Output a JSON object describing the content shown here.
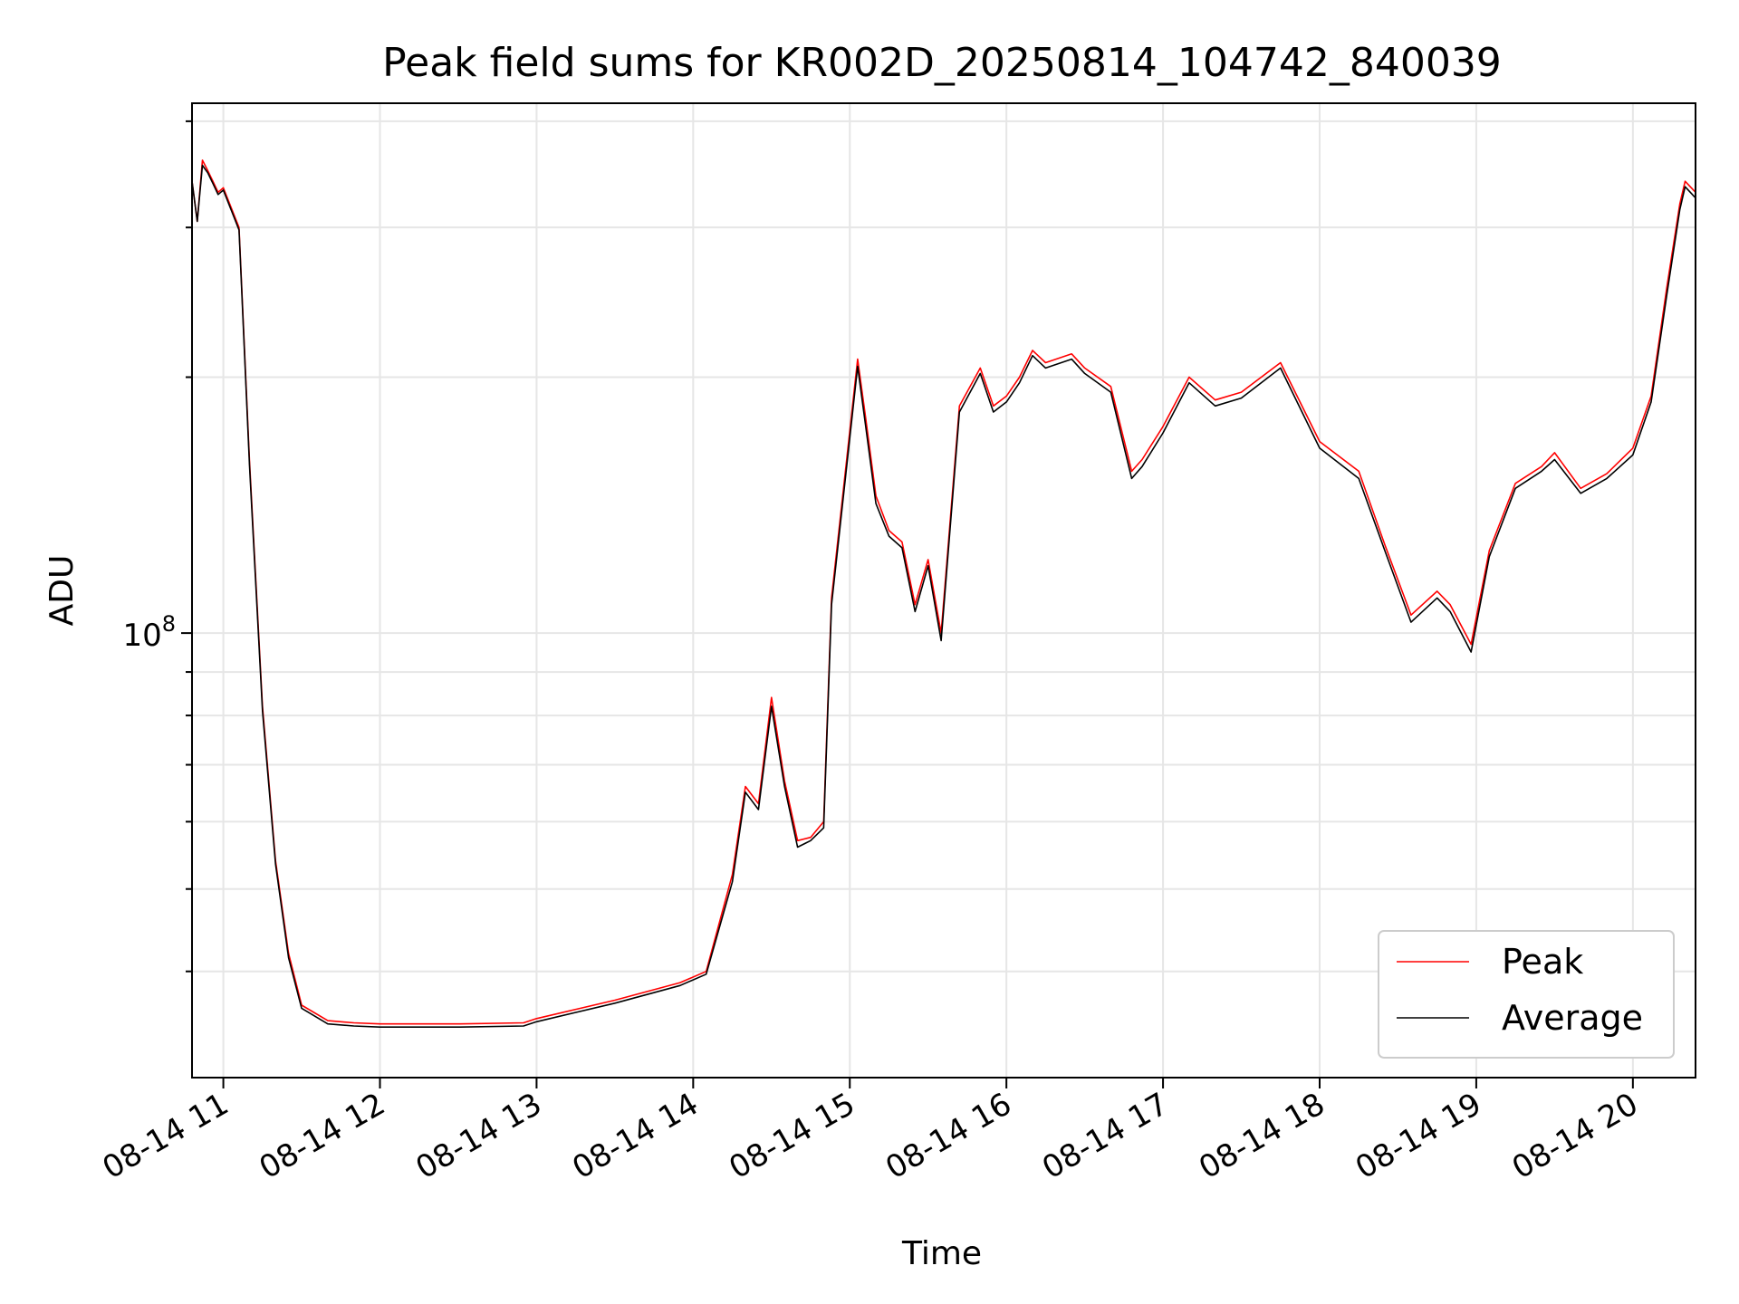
{
  "chart_data": {
    "type": "line",
    "title": "Peak field sums for KR002D_20250814_104742_840039",
    "xlabel": "Time",
    "ylabel": "ADU",
    "yscale": "log",
    "grid": true,
    "legend_location": "lower right",
    "x_ticks": [
      "08-14 11",
      "08-14 12",
      "08-14 13",
      "08-14 14",
      "08-14 15",
      "08-14 16",
      "08-14 17",
      "08-14 18",
      "08-14 19",
      "08-14 20"
    ],
    "y_ticks": [
      {
        "label": "10",
        "exponent": "8",
        "value": 100000000
      }
    ],
    "x_range": [
      "08-14 10:48",
      "08-14 20:24"
    ],
    "y_range": [
      30000000,
      420000000
    ],
    "x_times": [
      "08-14 10:48",
      "08-14 10:50",
      "08-14 10:52",
      "08-14 10:54",
      "08-14 10:56",
      "08-14 10:58",
      "08-14 11:00",
      "08-14 11:06",
      "08-14 11:10",
      "08-14 11:15",
      "08-14 11:20",
      "08-14 11:25",
      "08-14 11:30",
      "08-14 11:40",
      "08-14 11:50",
      "08-14 12:00",
      "08-14 12:30",
      "08-14 12:55",
      "08-14 13:00",
      "08-14 13:30",
      "08-14 13:55",
      "08-14 14:05",
      "08-14 14:15",
      "08-14 14:20",
      "08-14 14:25",
      "08-14 14:30",
      "08-14 14:35",
      "08-14 14:40",
      "08-14 14:45",
      "08-14 14:50",
      "08-14 14:53",
      "08-14 15:03",
      "08-14 15:06",
      "08-14 15:10",
      "08-14 15:15",
      "08-14 15:20",
      "08-14 15:25",
      "08-14 15:30",
      "08-14 15:35",
      "08-14 15:42",
      "08-14 15:50",
      "08-14 15:55",
      "08-14 16:00",
      "08-14 16:05",
      "08-14 16:10",
      "08-14 16:15",
      "08-14 16:25",
      "08-14 16:30",
      "08-14 16:40",
      "08-14 16:48",
      "08-14 16:52",
      "08-14 17:00",
      "08-14 17:10",
      "08-14 17:20",
      "08-14 17:30",
      "08-14 17:45",
      "08-14 18:00",
      "08-14 18:15",
      "08-14 18:25",
      "08-14 18:35",
      "08-14 18:45",
      "08-14 18:50",
      "08-14 18:58",
      "08-14 19:05",
      "08-14 19:15",
      "08-14 19:25",
      "08-14 19:30",
      "08-14 19:40",
      "08-14 19:50",
      "08-14 20:00",
      "08-14 20:07",
      "08-14 20:13",
      "08-14 20:18",
      "08-14 20:20",
      "08-14 20:24"
    ],
    "series": [
      {
        "name": "Peak",
        "color": "#ff0000",
        "values": [
          340000000,
          305000000,
          360000000,
          350000000,
          340000000,
          330000000,
          334000000,
          300000000,
          160000000,
          82000000,
          54000000,
          42000000,
          36500000,
          35000000,
          34800000,
          34700000,
          34700000,
          34800000,
          35200000,
          37000000,
          38800000,
          40000000,
          52000000,
          66000000,
          63000000,
          84000000,
          67000000,
          57000000,
          57500000,
          60000000,
          110000000,
          210000000,
          180000000,
          145000000,
          132000000,
          128000000,
          108000000,
          122000000,
          100000000,
          185000000,
          205000000,
          185000000,
          190000000,
          200000000,
          215000000,
          208000000,
          213000000,
          205000000,
          195000000,
          155000000,
          160000000,
          175000000,
          200000000,
          188000000,
          192000000,
          208000000,
          168000000,
          155000000,
          127000000,
          105000000,
          112000000,
          108000000,
          97000000,
          125000000,
          150000000,
          157000000,
          163000000,
          148000000,
          154000000,
          165000000,
          190000000,
          255000000,
          320000000,
          340000000,
          330000000
        ]
      },
      {
        "name": "Average",
        "color": "#000000",
        "values": [
          340000000,
          305000000,
          355000000,
          348000000,
          338000000,
          328000000,
          332000000,
          298000000,
          158000000,
          81000000,
          53500000,
          41500000,
          36200000,
          34700000,
          34500000,
          34400000,
          34400000,
          34500000,
          34900000,
          36700000,
          38500000,
          39700000,
          51000000,
          65000000,
          62000000,
          82000000,
          66000000,
          56000000,
          57000000,
          59000000,
          108000000,
          206000000,
          176000000,
          142000000,
          130000000,
          126000000,
          106000000,
          120000000,
          98000000,
          182000000,
          202000000,
          182000000,
          187000000,
          197000000,
          212000000,
          205000000,
          210000000,
          202000000,
          192000000,
          152000000,
          157000000,
          172000000,
          197000000,
          185000000,
          189000000,
          205000000,
          165000000,
          152000000,
          125000000,
          103000000,
          110000000,
          106000000,
          95000000,
          123000000,
          148000000,
          155000000,
          160000000,
          146000000,
          152000000,
          162000000,
          187000000,
          250000000,
          315000000,
          335000000,
          325000000
        ]
      }
    ]
  }
}
